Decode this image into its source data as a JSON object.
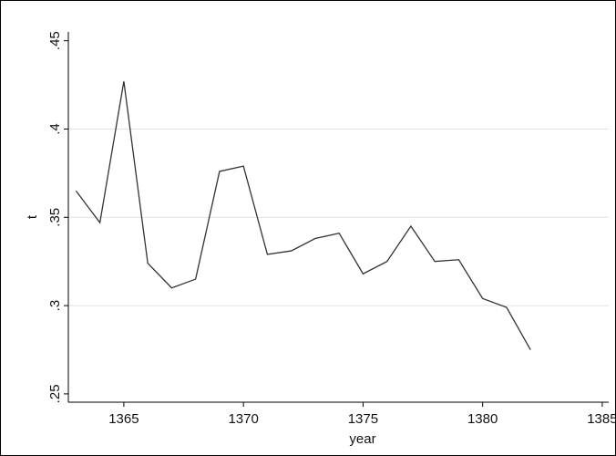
{
  "chart_data": {
    "type": "line",
    "x_label": "year",
    "y_label": "t",
    "x": [
      1363,
      1364,
      1365,
      1366,
      1367,
      1368,
      1369,
      1370,
      1371,
      1372,
      1373,
      1374,
      1375,
      1376,
      1377,
      1378,
      1379,
      1380,
      1381,
      1382
    ],
    "series": [
      {
        "name": "t",
        "color": "#333333",
        "values": [
          0.365,
          0.347,
          0.427,
          0.324,
          0.31,
          0.315,
          0.376,
          0.379,
          0.329,
          0.331,
          0.338,
          0.341,
          0.318,
          0.325,
          0.345,
          0.325,
          0.326,
          0.304,
          0.299,
          0.275
        ]
      }
    ],
    "xlim": [
      1362.68,
      1385.27
    ],
    "xticks": [
      1365,
      1370,
      1375,
      1380,
      1385
    ],
    "ylim": [
      0.2453,
      0.455
    ],
    "yticks": [
      {
        "value": 0.25,
        "label": ".25"
      },
      {
        "value": 0.3,
        "label": ".3"
      },
      {
        "value": 0.35,
        "label": ".35"
      },
      {
        "value": 0.4,
        "label": ".4"
      },
      {
        "value": 0.45,
        "label": ".45"
      }
    ],
    "grid": true
  }
}
